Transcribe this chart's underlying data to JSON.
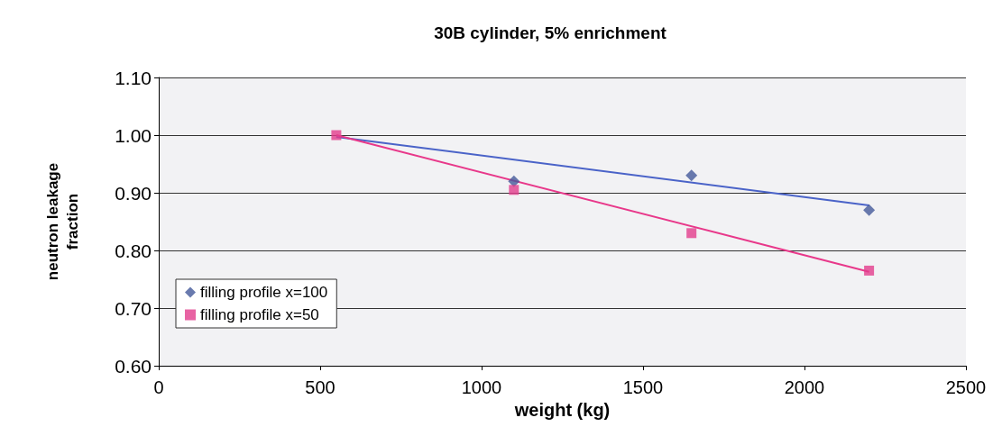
{
  "chart_data": {
    "type": "scatter",
    "title": "30B cylinder, 5% enrichment",
    "xlabel": "weight (kg)",
    "ylabel": "neutron leakage\nfraction",
    "xlim": [
      0,
      2500
    ],
    "xticks": [
      0,
      500,
      1000,
      1500,
      2000,
      2500
    ],
    "ylim": [
      0.6,
      1.1
    ],
    "yticks": [
      {
        "value": 0.6,
        "label": "0.60"
      },
      {
        "value": 0.7,
        "label": "0.70"
      },
      {
        "value": 0.8,
        "label": "0.80"
      },
      {
        "value": 0.9,
        "label": "0.90"
      },
      {
        "value": 1.0,
        "label": "1.00"
      },
      {
        "value": 1.1,
        "label": "1.10"
      }
    ],
    "grid": "y",
    "legend": "bottom left",
    "series": [
      {
        "name": "filling profile x=100",
        "color": "#44599a",
        "marker": "diamond",
        "x": [
          1100,
          1650,
          2200
        ],
        "values": [
          0.92,
          0.93,
          0.87
        ]
      },
      {
        "name": "filling profile x=50",
        "color": "#e23c8c",
        "marker": "square",
        "x": [
          550,
          1100,
          1650,
          2200
        ],
        "values": [
          1.0,
          0.905,
          0.83,
          0.765
        ]
      },
      {
        "type": "line",
        "color": "#4a63c8",
        "marker": "none",
        "x": [
          550,
          2200
        ],
        "values": [
          0.997,
          0.878
        ]
      },
      {
        "type": "line",
        "color": "#e8388a",
        "marker": "none",
        "x": [
          550,
          2200
        ],
        "values": [
          1.0,
          0.763
        ]
      }
    ]
  }
}
